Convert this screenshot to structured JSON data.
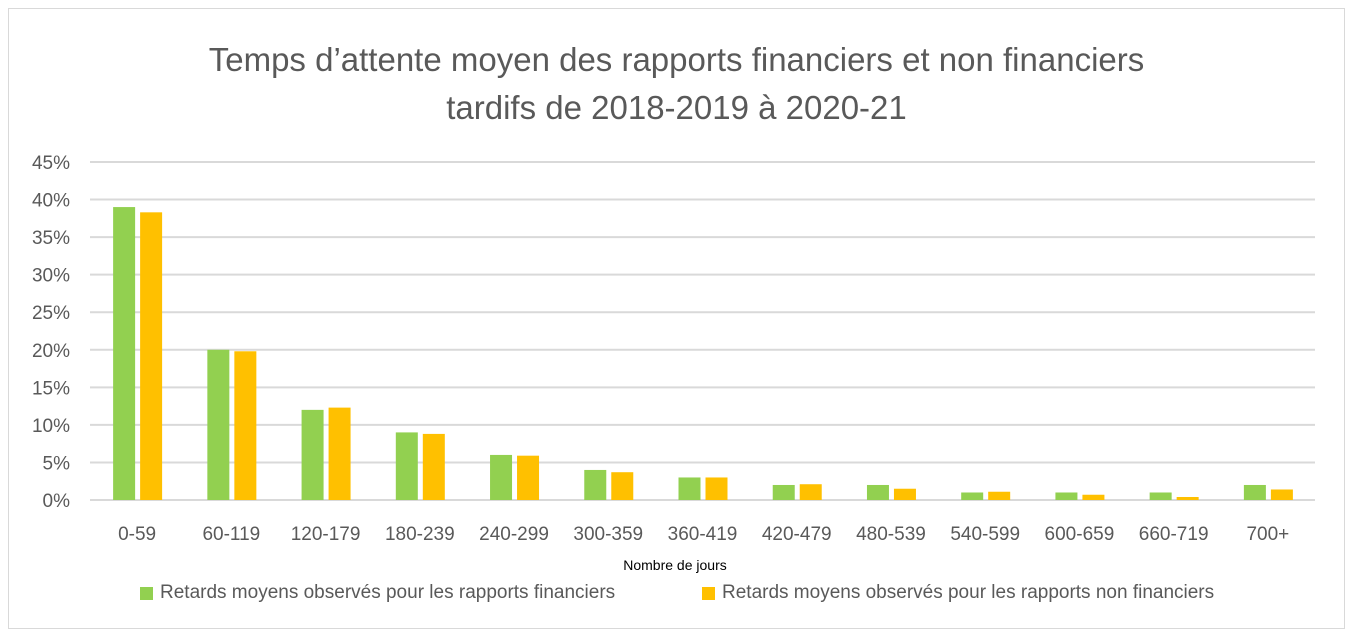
{
  "chart_data": {
    "type": "bar",
    "title_line1": "Temps d’attente moyen des rapports financiers et non financiers",
    "title_line2": "tardifs de 2018-2019 à 2020-21",
    "xlabel": "Nombre de jours",
    "ylabel": "",
    "ylim": [
      0,
      45
    ],
    "yticks": [
      "0%",
      "5%",
      "10%",
      "15%",
      "20%",
      "25%",
      "30%",
      "35%",
      "40%",
      "45%"
    ],
    "grid": true,
    "legend_position": "bottom",
    "categories": [
      "0-59",
      "60-119",
      "120-179",
      "180-239",
      "240-299",
      "300-359",
      "360-419",
      "420-479",
      "480-539",
      "540-599",
      "600-659",
      "660-719",
      "700+"
    ],
    "series": [
      {
        "name": "Retards moyens observés pour les rapports financiers",
        "color": "#92d050",
        "values": [
          39,
          20,
          12,
          9,
          6,
          4,
          3,
          2,
          2,
          1,
          1,
          1,
          2
        ]
      },
      {
        "name": "Retards moyens observés pour les rapports non financiers",
        "color": "#ffc000",
        "values": [
          38.3,
          19.8,
          12.3,
          8.8,
          5.9,
          3.7,
          3,
          2.1,
          1.5,
          1.1,
          0.7,
          0.4,
          1.4
        ]
      }
    ]
  }
}
